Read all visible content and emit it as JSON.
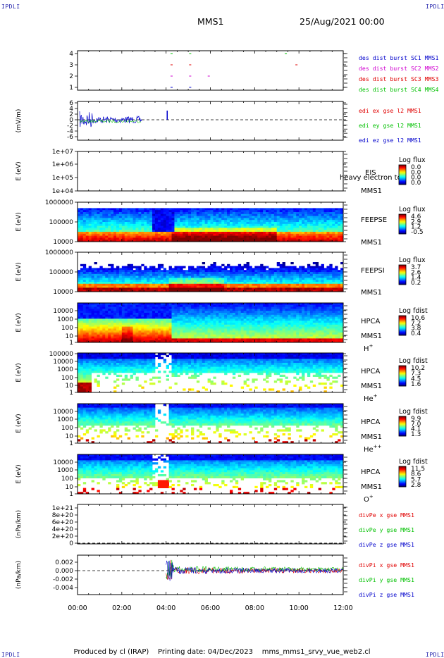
{
  "corner_label": "IPDLI",
  "title": {
    "spacecraft": "MMS1",
    "date": "25/Aug/2021 00:00"
  },
  "footer": {
    "produced": "Produced by cl (IRAP)",
    "printing": "Printing date: 04/Dec/2023",
    "file": "mms_mms1_srvy_vue_web2.cl"
  },
  "colors": {
    "red": "#e00000",
    "green": "#00c000",
    "blue": "#0000cc",
    "magenta": "#d000d0"
  },
  "chart_data": {
    "type": "multi-panel",
    "x_range": [
      "00:00",
      "12:00"
    ],
    "x_ticks": [
      "00:00",
      "02:00",
      "04:00",
      "06:00",
      "08:00",
      "10:00",
      "12:00"
    ],
    "panels": [
      {
        "id": "burst",
        "type": "line",
        "yticks": [
          "1",
          "2",
          "3",
          "4"
        ],
        "legend": [
          {
            "text": "des dist burst SC1 MMS1",
            "color": "#0000cc"
          },
          {
            "text": "des dist burst SC2 MMS2",
            "color": "#d000d0"
          },
          {
            "text": "des dist burst SC3 MMS3",
            "color": "#e00000"
          },
          {
            "text": "des dist burst SC4 MMS4",
            "color": "#00c000"
          }
        ]
      },
      {
        "id": "edi",
        "type": "line",
        "ylabel": "(mV/m)",
        "yticks": [
          "-6",
          "-4",
          "-2",
          "0",
          "2",
          "4",
          "6"
        ],
        "legend": [
          {
            "text": "edi ex gse l2 MMS1",
            "color": "#e00000"
          },
          {
            "text": "edi ey gse l2 MMS1",
            "color": "#00c000"
          },
          {
            "text": "edi ez gse l2 MMS1",
            "color": "#0000cc"
          }
        ]
      },
      {
        "id": "eis",
        "type": "heatmap",
        "ylabel": "E (eV)",
        "yticks": [
          "1e+04",
          "1e+05",
          "1e+06",
          "1e+07"
        ],
        "side_label": [
          "EIS",
          "MMS1"
        ],
        "overflow_label": "heavy electron tof",
        "colorbar": {
          "title": "Log flux",
          "ticks": [
            "0.0",
            "0.0",
            "0.0",
            "0.0"
          ]
        }
      },
      {
        "id": "feepse",
        "type": "heatmap",
        "ylabel": "E (eV)",
        "yticks": [
          "10000",
          "100000",
          "1000000"
        ],
        "side_label": [
          "FEEPSE",
          "MMS1"
        ],
        "colorbar": {
          "title": "Log flux",
          "ticks": [
            "4.6",
            "2.9",
            "1.2",
            "-0.5"
          ]
        }
      },
      {
        "id": "feepsi",
        "type": "heatmap",
        "ylabel": "E (eV)",
        "yticks": [
          "10000",
          "100000",
          "1000000"
        ],
        "side_label": [
          "FEEPSI",
          "MMS1"
        ],
        "colorbar": {
          "title": "Log flux",
          "ticks": [
            "3.7",
            "2.6",
            "1.4",
            "0.2"
          ]
        }
      },
      {
        "id": "hpca_h",
        "type": "heatmap",
        "ylabel": "E (eV)",
        "yticks": [
          "1",
          "10",
          "100",
          "1000",
          "10000"
        ],
        "side_label": [
          "HPCA",
          "MMS1"
        ],
        "species": "H",
        "charge": "+",
        "colorbar": {
          "title": "Log fdist",
          "ticks": [
            "10.6",
            "7.2",
            "3.8",
            "0.4"
          ]
        }
      },
      {
        "id": "hpca_he",
        "type": "heatmap",
        "ylabel": "E (eV)",
        "yticks": [
          "1",
          "10",
          "100",
          "1000",
          "10000",
          "100000"
        ],
        "side_label": [
          "HPCA",
          "MMS1"
        ],
        "species": "He",
        "charge": "+",
        "colorbar": {
          "title": "Log fdist",
          "ticks": [
            "10.2",
            "7.3",
            "4.5",
            "1.6"
          ]
        }
      },
      {
        "id": "hpca_hepp",
        "type": "heatmap",
        "ylabel": "E (eV)",
        "yticks": [
          "1",
          "10",
          "100",
          "1000",
          "10000"
        ],
        "side_label": [
          "HPCA",
          "MMS1"
        ],
        "species": "He",
        "charge": "++",
        "colorbar": {
          "title": "Log fdist",
          "ticks": [
            "9.9",
            "7.0",
            "4.1",
            "1.3"
          ]
        }
      },
      {
        "id": "hpca_o",
        "type": "heatmap",
        "ylabel": "E (eV)",
        "yticks": [
          "1",
          "10",
          "100",
          "1000",
          "10000"
        ],
        "side_label": [
          "HPCA",
          "MMS1"
        ],
        "species": "O",
        "charge": "+",
        "colorbar": {
          "title": "Log fdist",
          "ticks": [
            "11.5",
            "8.6",
            "5.7",
            "2.8"
          ]
        }
      },
      {
        "id": "divpe",
        "type": "line",
        "ylabel": "(nPa/km)",
        "yticks": [
          "0",
          "2e+20",
          "4e+20",
          "6e+20",
          "8e+20",
          "1e+21"
        ],
        "legend": [
          {
            "text": "divPe x gse MMS1",
            "color": "#e00000"
          },
          {
            "text": "divPe y gse MMS1",
            "color": "#00c000"
          },
          {
            "text": "divPe z gse MMS1",
            "color": "#0000cc"
          }
        ]
      },
      {
        "id": "divpi",
        "type": "line",
        "ylabel": "(nPa/km)",
        "yticks": [
          "-0.004",
          "-0.002",
          "0.000",
          "0.002"
        ],
        "legend": [
          {
            "text": "divPi x gse MMS1",
            "color": "#e00000"
          },
          {
            "text": "divPi y gse MMS1",
            "color": "#00c000"
          },
          {
            "text": "divPi z gse MMS1",
            "color": "#0000cc"
          }
        ]
      }
    ]
  }
}
